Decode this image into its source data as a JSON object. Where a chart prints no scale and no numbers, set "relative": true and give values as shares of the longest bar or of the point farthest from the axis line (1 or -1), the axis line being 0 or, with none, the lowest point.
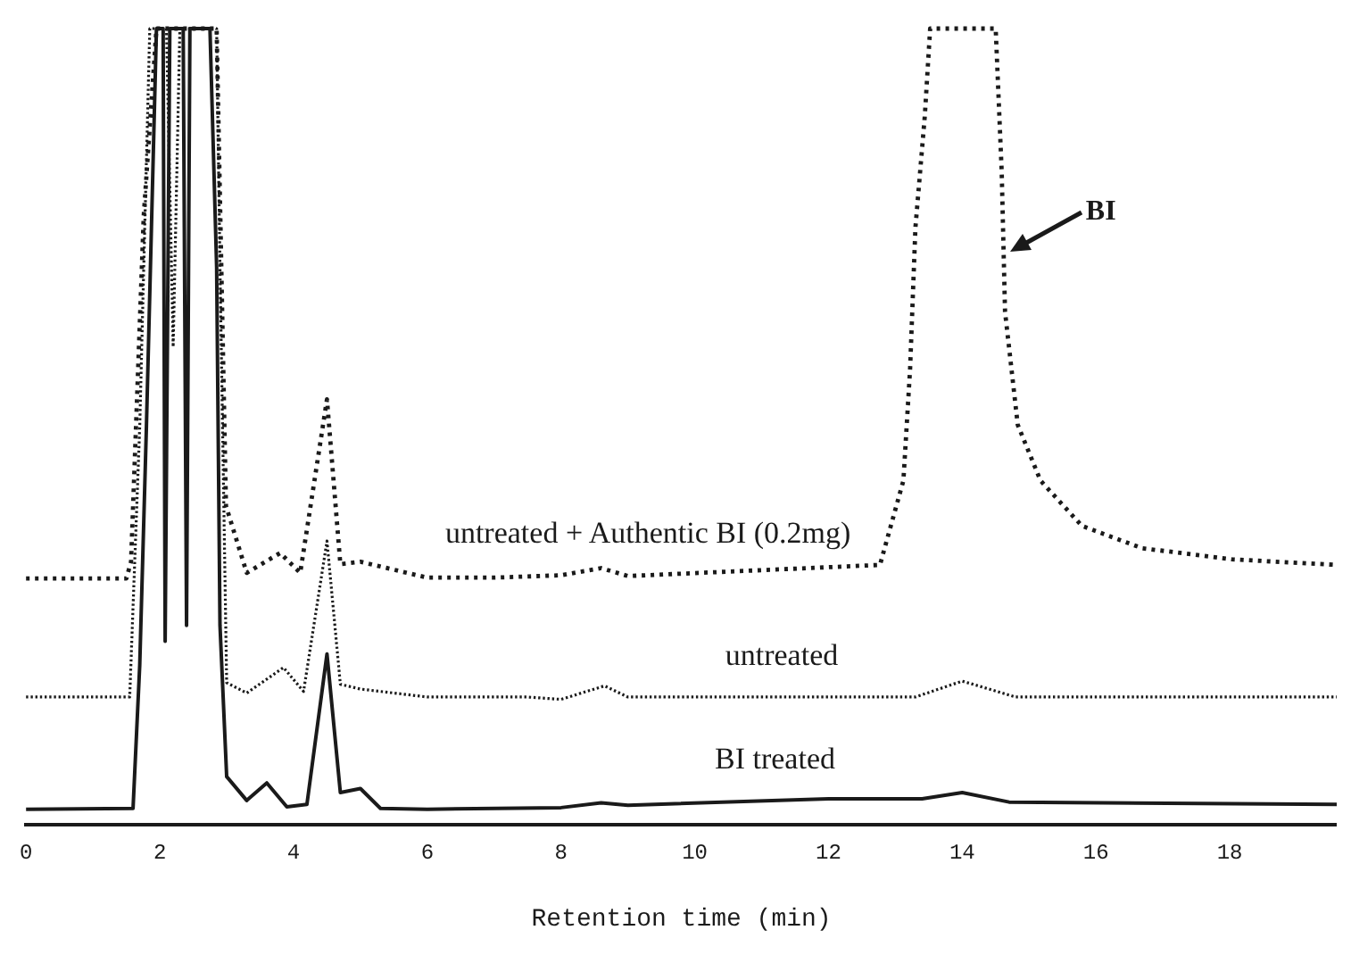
{
  "chart_data": {
    "type": "line",
    "relative": true,
    "xlabel": "Retention time (min)",
    "xlim": [
      0,
      19.6
    ],
    "xticks": [
      0,
      2,
      4,
      6,
      8,
      10,
      12,
      14,
      16,
      18
    ],
    "grid": false,
    "legend": false,
    "marker": "none",
    "annotations": [
      {
        "text": "BI",
        "x": 14.62,
        "y": 0.72
      }
    ],
    "series": [
      {
        "name": "untreated + Authentic BI (0.2mg)",
        "color": "#1a1a1a",
        "line_style": "dotted",
        "x": [
          0,
          1.5,
          1.57,
          1.76,
          1.95,
          2.85,
          2.99,
          3.3,
          3.8,
          4.1,
          4.5,
          4.7,
          5.0,
          6,
          7,
          8,
          8.6,
          9,
          12.77,
          13.12,
          13.22,
          13.3,
          13.44,
          13.52,
          14.5,
          14.59,
          14.64,
          14.83,
          15.17,
          15.79,
          16.69,
          18.03,
          19.6
        ],
        "values": [
          0.309,
          0.309,
          0.33,
          0.765,
          1.0,
          1.0,
          0.4,
          0.316,
          0.341,
          0.316,
          0.534,
          0.327,
          0.33,
          0.31,
          0.31,
          0.313,
          0.322,
          0.312,
          0.326,
          0.432,
          0.572,
          0.75,
          0.89,
          1.0,
          1.0,
          0.82,
          0.644,
          0.502,
          0.432,
          0.375,
          0.347,
          0.333,
          0.326
        ]
      },
      {
        "name": "untreated",
        "color": "#1a1a1a",
        "line_style": "dotted",
        "x": [
          0,
          1.55,
          1.7,
          1.85,
          2.1,
          2.2,
          2.3,
          2.85,
          2.9,
          3.0,
          3.3,
          3.85,
          4.15,
          4.5,
          4.7,
          5.0,
          6,
          7.5,
          8,
          8.65,
          9,
          13.3,
          14,
          14.8,
          19.6
        ],
        "values": [
          0.16,
          0.16,
          0.5,
          1.0,
          1.0,
          0.6,
          1.0,
          1.0,
          0.7,
          0.178,
          0.165,
          0.197,
          0.167,
          0.356,
          0.176,
          0.17,
          0.16,
          0.16,
          0.157,
          0.174,
          0.16,
          0.16,
          0.18,
          0.16,
          0.16
        ]
      },
      {
        "name": "BI treated",
        "color": "#1a1a1a",
        "line_style": "solid",
        "x": [
          0,
          1.6,
          1.7,
          1.8,
          1.95,
          2.05,
          2.08,
          2.15,
          2.35,
          2.4,
          2.45,
          2.75,
          2.85,
          2.9,
          3.0,
          3.3,
          3.6,
          3.9,
          4.2,
          4.5,
          4.7,
          5.0,
          5.3,
          6,
          8,
          8.6,
          9,
          12,
          13.4,
          14,
          14.7,
          19.6
        ],
        "values": [
          0.019,
          0.02,
          0.2,
          0.5,
          1.0,
          1.0,
          0.23,
          1.0,
          1.0,
          0.25,
          1.0,
          1.0,
          0.7,
          0.25,
          0.06,
          0.03,
          0.052,
          0.022,
          0.025,
          0.214,
          0.04,
          0.045,
          0.02,
          0.019,
          0.021,
          0.027,
          0.024,
          0.032,
          0.032,
          0.04,
          0.028,
          0.025
        ]
      }
    ]
  }
}
